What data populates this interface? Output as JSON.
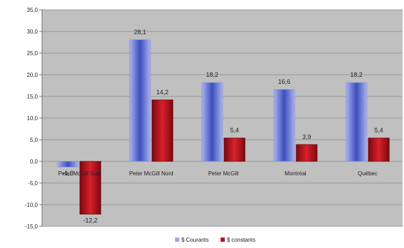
{
  "chart_data": {
    "type": "bar",
    "categories": [
      "Peter McGill Sud",
      "Peter McGill Nord",
      "Peter McGill",
      "Montréal",
      "Québec"
    ],
    "series": [
      {
        "name": "$ Courants",
        "values": [
          -1.3,
          28.1,
          18.2,
          16.6,
          18.2
        ],
        "labels": [
          "-1,3",
          "28,1",
          "18,2",
          "16,6",
          "18,2"
        ]
      },
      {
        "name": "$ constants",
        "values": [
          -12.2,
          14.2,
          5.4,
          3.9,
          5.4
        ],
        "labels": [
          "-12,2",
          "14,2",
          "5,4",
          "3,9",
          "5,4"
        ]
      }
    ],
    "ylim": [
      -15,
      35
    ],
    "yticks": [
      35,
      30,
      25,
      20,
      15,
      10,
      5,
      0,
      -5,
      -10,
      -15
    ],
    "ytick_labels": [
      "35,0",
      "30,0",
      "25,0",
      "20,0",
      "15,0",
      "10,0",
      "5,0",
      "0,0",
      "-5,0",
      "-10,0",
      "-15,0"
    ],
    "grid": true,
    "legend_position": "bottom",
    "colors": {
      "courants": "#9ea8e6",
      "constants": "#b8141c",
      "plot_bg": "#c0c0c0",
      "grid": "#8c8c8c"
    }
  }
}
